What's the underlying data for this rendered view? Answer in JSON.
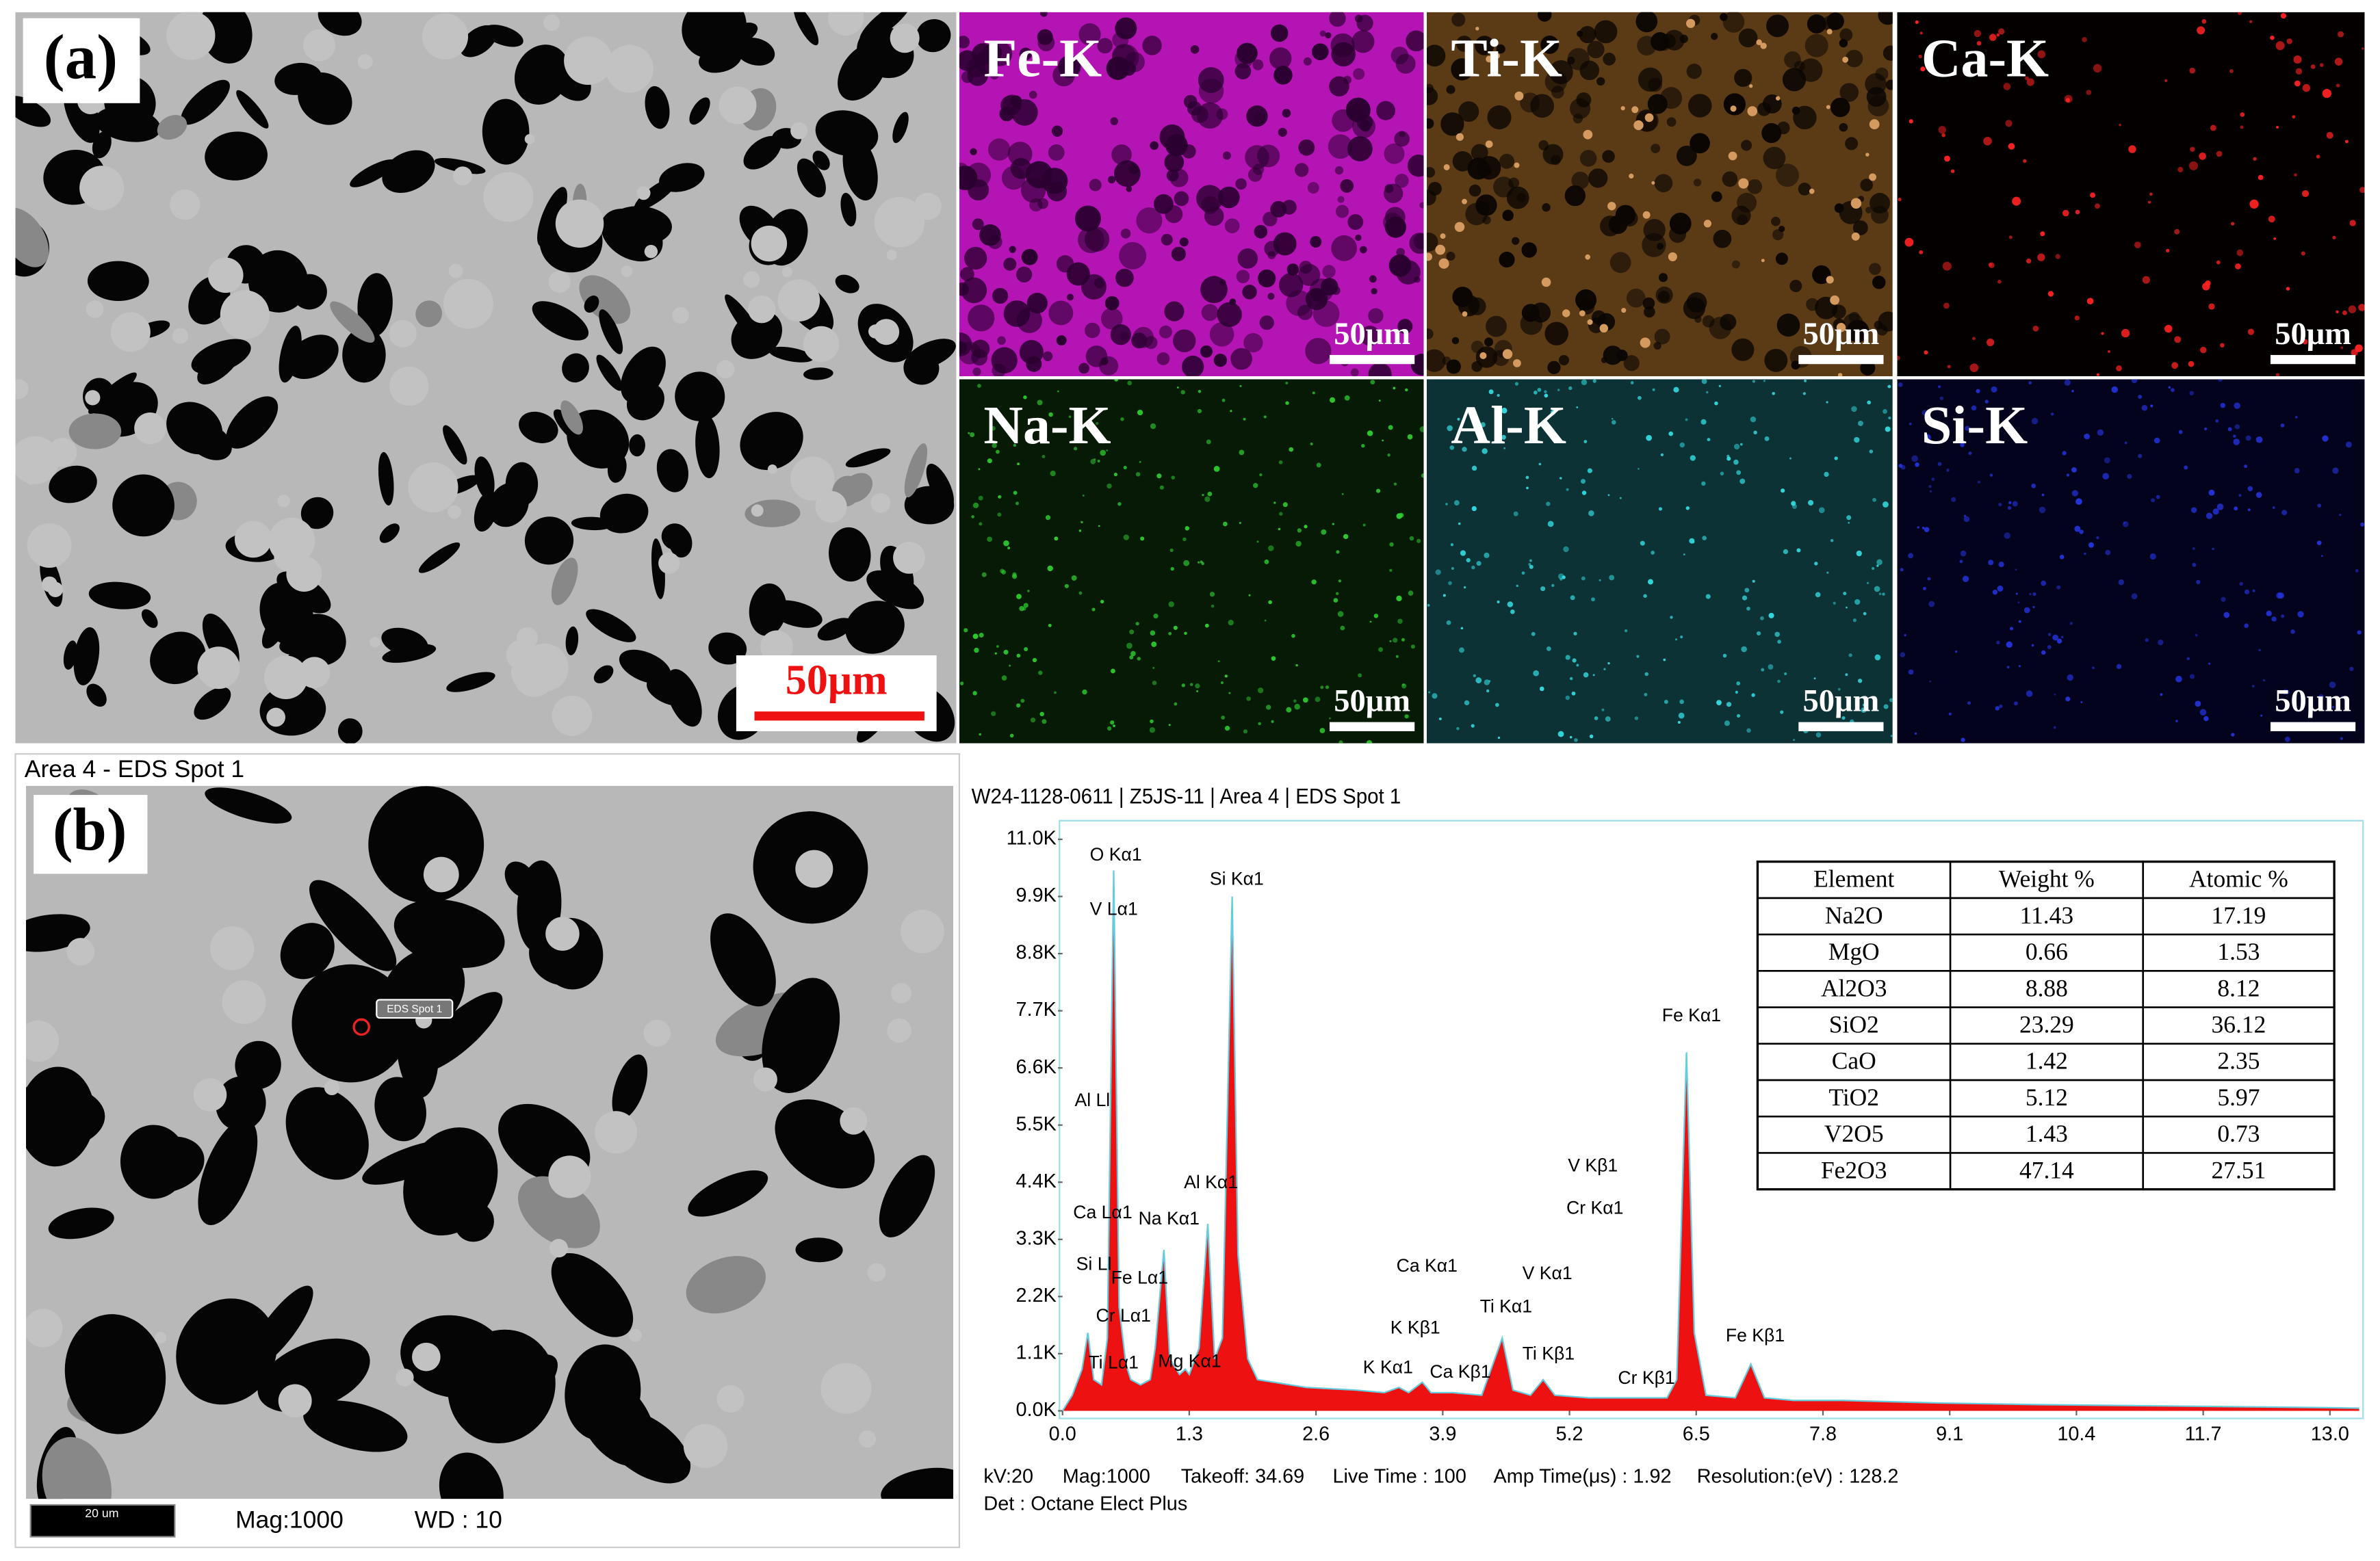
{
  "panel_a": {
    "label": "(a)",
    "scale": "50μm",
    "maps": [
      {
        "label": "Fe-K",
        "scale": "50μm"
      },
      {
        "label": "Ti-K",
        "scale": "50μm"
      },
      {
        "label": "Ca-K",
        "scale": "50μm"
      },
      {
        "label": "Na-K",
        "scale": "50μm"
      },
      {
        "label": "Al-K",
        "scale": "50μm"
      },
      {
        "label": "Si-K",
        "scale": "50μm"
      }
    ]
  },
  "panel_b": {
    "title": "Area 4 - EDS Spot 1",
    "label": "(b)",
    "spot_label": "EDS Spot 1",
    "scale": "20 um",
    "mag": "Mag:1000",
    "wd": "WD : 10"
  },
  "chart_data": {
    "type": "area",
    "title": "W24-1128-0611 | Z5JS-11 | Area 4 | EDS Spot 1",
    "x": [
      0,
      0.1,
      0.2,
      0.26,
      0.32,
      0.4,
      0.46,
      0.525,
      0.58,
      0.65,
      0.7,
      0.8,
      0.9,
      0.95,
      1.04,
      1.1,
      1.2,
      1.26,
      1.3,
      1.4,
      1.49,
      1.56,
      1.64,
      1.74,
      1.8,
      1.9,
      2.0,
      2.5,
      3.0,
      3.3,
      3.45,
      3.55,
      3.69,
      3.78,
      4.0,
      4.3,
      4.51,
      4.62,
      4.8,
      4.93,
      5.05,
      5.4,
      5.95,
      6.2,
      6.3,
      6.4,
      6.48,
      6.6,
      6.9,
      7.06,
      7.2,
      7.5,
      8.0,
      9.0,
      10.0,
      11.0,
      12.0,
      13.0,
      13.3
    ],
    "values": [
      0,
      0.3,
      0.8,
      1.5,
      0.6,
      0.5,
      1.4,
      10.4,
      2.0,
      0.9,
      0.6,
      0.5,
      0.6,
      1.2,
      3.1,
      1.0,
      0.7,
      0.8,
      0.7,
      1.2,
      3.6,
      1.0,
      1.4,
      9.9,
      3.0,
      1.0,
      0.6,
      0.45,
      0.4,
      0.35,
      0.45,
      0.35,
      0.55,
      0.35,
      0.35,
      0.3,
      1.4,
      0.4,
      0.3,
      0.6,
      0.3,
      0.25,
      0.25,
      0.25,
      0.6,
      6.9,
      1.5,
      0.3,
      0.25,
      0.9,
      0.25,
      0.2,
      0.2,
      0.15,
      0.12,
      0.1,
      0.08,
      0.06,
      0.05
    ],
    "color": "#ee1111",
    "edge_color": "#66ccdd",
    "xlim": [
      0,
      13.34
    ],
    "ylim": [
      0,
      11.3
    ],
    "xticks": [
      {
        "value": 0,
        "label": "0.0"
      },
      1.3,
      2.6,
      3.9,
      5.2,
      6.5,
      7.8,
      9.1,
      10.4,
      11.7,
      {
        "value": 13,
        "label": "13.0"
      }
    ],
    "yticks": [
      {
        "value": 0,
        "label": "0.0K"
      },
      {
        "value": 1.1,
        "label": "1.1K"
      },
      {
        "value": 2.2,
        "label": "2.2K"
      },
      {
        "value": 3.3,
        "label": "3.3K"
      },
      {
        "value": 4.4,
        "label": "4.4K"
      },
      {
        "value": 5.5,
        "label": "5.5K"
      },
      {
        "value": 6.6,
        "label": "6.6K"
      },
      {
        "value": 7.7,
        "label": "7.7K"
      },
      {
        "value": 8.8,
        "label": "8.8K"
      },
      {
        "value": 9.9,
        "label": "9.9K"
      },
      {
        "value": 11,
        "label": "11.0K"
      }
    ],
    "annotations": [
      "O Kα1",
      "V Lα1",
      "Si Kα1",
      "Al Ll",
      "Ca Lα1",
      "Na Kα1",
      "Si Ll",
      "Fe Lα1",
      "Cr Lα1",
      "Ti Lα1",
      "Mg Kα1",
      "Al Kα1",
      "K Kα1",
      "K Kβ1",
      "Ca Kβ1",
      "Ca Kα1",
      "Ti Kα1",
      "Ti Kβ1",
      "V Kα1",
      "V Kβ1",
      "Cr Kα1",
      "Cr Kβ1",
      "Fe Kα1",
      "Fe Kβ1"
    ]
  },
  "table": {
    "header": [
      "Element",
      "Weight %",
      "Atomic %"
    ],
    "rows": [
      [
        "Na2O",
        11.43,
        17.19
      ],
      [
        "MgO",
        0.66,
        1.53
      ],
      [
        "Al2O3",
        8.88,
        8.12
      ],
      [
        "SiO2",
        23.29,
        36.12
      ],
      [
        "CaO",
        1.42,
        2.35
      ],
      [
        "TiO2",
        5.12,
        5.97
      ],
      [
        "V2O5",
        1.43,
        0.73
      ],
      [
        "Fe2O3",
        47.14,
        27.51
      ]
    ]
  },
  "footer": {
    "line1": [
      "kV:20",
      "Mag:1000",
      "Takeoff: 34.69",
      "Live Time : 100",
      "Amp Time(μs) : 1.92",
      "Resolution:(eV) : 128.2"
    ],
    "line2": "Det : Octane Elect Plus"
  }
}
